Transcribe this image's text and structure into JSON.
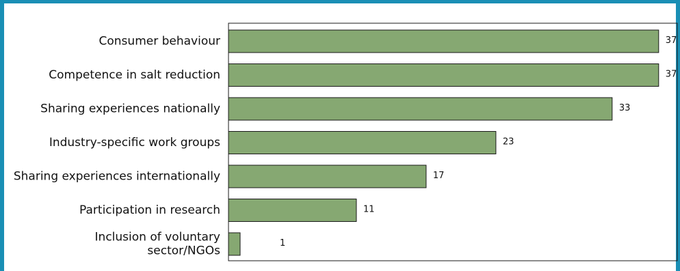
{
  "chart_data": {
    "type": "bar",
    "orientation": "horizontal",
    "categories": [
      [
        "Consumer behaviour"
      ],
      [
        "Competence in salt reduction"
      ],
      [
        "Sharing experiences nationally"
      ],
      [
        "Industry-specific work groups"
      ],
      [
        "Sharing experiences internationally"
      ],
      [
        "Participation in research"
      ],
      [
        "Inclusion of voluntary",
        "sector/NGOs"
      ]
    ],
    "values": [
      37,
      37,
      33,
      23,
      17,
      11,
      1
    ],
    "data_labels": [
      "37",
      "37",
      "33",
      "23",
      "17",
      "11",
      "1"
    ],
    "title": "",
    "xlabel": "",
    "ylabel": "",
    "xlim": [
      0,
      38.6
    ],
    "grid": false,
    "legend": "none",
    "colors": {
      "bar": "#86a872",
      "bar_stroke": "#1a1a1a",
      "frame": "#1a8fb5"
    }
  }
}
